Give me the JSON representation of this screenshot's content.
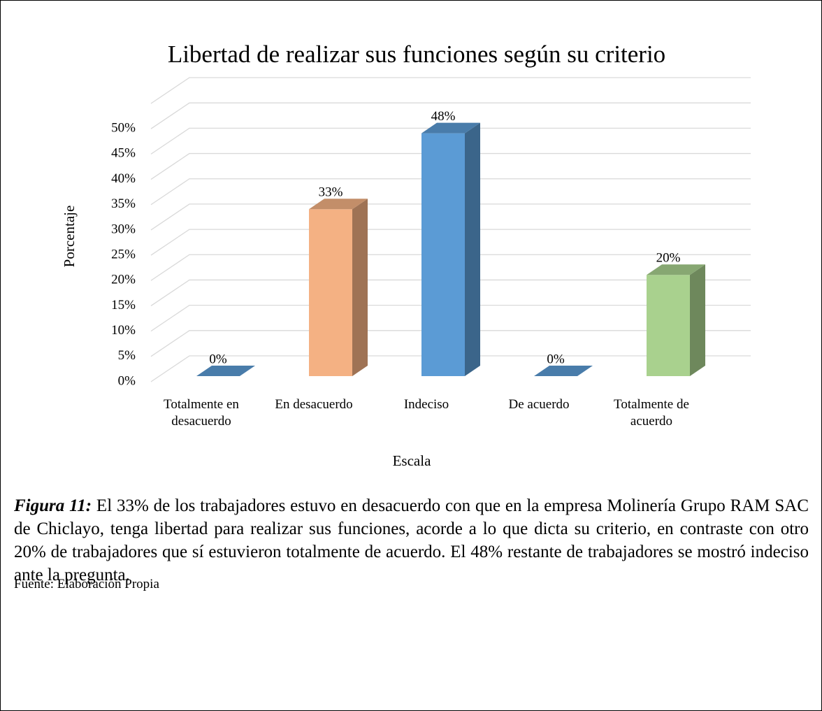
{
  "chart_data": {
    "type": "bar3d",
    "title": "Libertad de realizar sus funciones según su criterio",
    "ylabel": "Porcentaje",
    "xlabel": "Escala",
    "categories": [
      "Totalmente en desacuerdo",
      "En desacuerdo",
      "Indeciso",
      "De acuerdo",
      "Totalmente de acuerdo"
    ],
    "values": [
      0,
      33,
      48,
      0,
      20
    ],
    "value_labels": [
      "0%",
      "33%",
      "48%",
      "0%",
      "20%"
    ],
    "colors": [
      "#5b9bd5",
      "#f4b183",
      "#5b9bd5",
      "#5b9bd5",
      "#a9d18e"
    ],
    "ylim": [
      0,
      55
    ],
    "yticks": [
      {
        "value": 0,
        "label": "0%"
      },
      {
        "value": 5,
        "label": "5%"
      },
      {
        "value": 10,
        "label": "10%"
      },
      {
        "value": 15,
        "label": "15%"
      },
      {
        "value": 20,
        "label": "20%"
      },
      {
        "value": 25,
        "label": "25%"
      },
      {
        "value": 30,
        "label": "30%"
      },
      {
        "value": 35,
        "label": "35%"
      },
      {
        "value": 40,
        "label": "40%"
      },
      {
        "value": 45,
        "label": "45%"
      },
      {
        "value": 50,
        "label": "50%"
      }
    ],
    "grid": true
  },
  "caption": {
    "label": "Figura 11:",
    "text": "El 33% de los trabajadores estuvo en desacuerdo con que en la empresa Molinería Grupo RAM SAC de Chiclayo, tenga libertad para realizar sus funciones, acorde a lo que dicta su criterio, en contraste con otro 20% de trabajadores que sí estuvieron totalmente de acuerdo. El 48% restante de trabajadores se mostró indeciso ante la pregunta."
  },
  "source": "Fuente: Elaboración Propia"
}
